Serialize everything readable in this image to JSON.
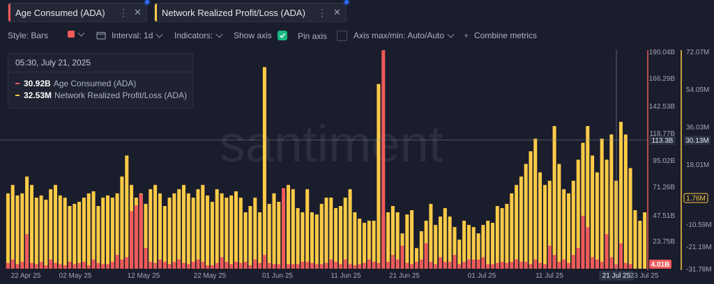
{
  "tabs": [
    {
      "label": "Age Consumed (ADA)",
      "color": "#f05a5a"
    },
    {
      "label": "Network Realized Profit/Loss (ADA)",
      "color": "#ffcb47"
    }
  ],
  "toolbar": {
    "style": "Style: Bars",
    "interval": "Interval: 1d",
    "indicators": "Indicators:",
    "show_axis": "Show axis",
    "pin_axis": "Pin axis",
    "axis_maxmin": "Axis max/min: Auto/Auto",
    "combine": "Combine metrics"
  },
  "tooltip": {
    "date": "05:30, July 21, 2025",
    "rows": [
      {
        "value": "30.92B",
        "label": "Age Consumed (ADA)",
        "color": "#f05a5a"
      },
      {
        "value": "32.53M",
        "label": "Network Realized Profit/Loss (ADA)",
        "color": "#ffcb47"
      }
    ]
  },
  "watermark": "santiment",
  "chart_data": {
    "type": "bar",
    "x_ticks": [
      "22 Apr 25",
      "02 May 25",
      "12 May 25",
      "22 May 25",
      "01 Jun 25",
      "11 Jun 25",
      "21 Jun 25",
      "01 Jul 25",
      "11 Jul 25",
      "21 Jul 25",
      "23 Jul 25"
    ],
    "left_axis": {
      "ticks": [
        "190.04B",
        "166.29B",
        "142.53B",
        "118.77B",
        "95.02B",
        "71.26B",
        "47.51B",
        "23.75B"
      ],
      "current": "113.3B",
      "last": "4.01B",
      "range": [
        0,
        190.04
      ],
      "color": "#f05a5a"
    },
    "right_axis": {
      "ticks": [
        "72.07M",
        "54.05M",
        "36.03M",
        "18.01M",
        "-10.59M",
        "-21.19M",
        "-31.78M"
      ],
      "current": "30.13M",
      "last": "1.76M",
      "range": [
        -31.78,
        72.07
      ],
      "color": "#ffcb47"
    },
    "series": [
      {
        "name": "Age Consumed (ADA)",
        "color": "#f05a5a",
        "values": [
          5,
          8,
          4,
          6,
          30,
          5,
          4,
          6,
          3,
          8,
          5,
          4,
          3,
          6,
          4,
          5,
          6,
          3,
          8,
          5,
          4,
          4,
          6,
          12,
          8,
          10,
          50,
          55,
          65,
          18,
          6,
          5,
          8,
          6,
          4,
          6,
          8,
          5,
          4,
          6,
          8,
          6,
          3,
          3,
          5,
          10,
          6,
          4,
          6,
          5,
          6,
          3,
          8,
          5,
          12,
          5,
          4,
          4,
          70,
          4,
          4,
          4,
          6,
          6,
          5,
          4,
          4,
          5,
          8,
          6,
          4,
          8,
          4,
          3,
          4,
          5,
          8,
          6,
          5,
          190,
          6,
          12,
          8,
          20,
          5,
          4,
          6,
          8,
          22,
          6,
          4,
          10,
          6,
          6,
          12,
          4,
          6,
          8,
          8,
          8,
          10,
          4,
          4,
          5,
          6,
          5,
          6,
          8,
          6,
          6,
          4,
          8,
          5,
          4,
          20,
          12,
          6,
          8,
          5,
          12,
          18,
          46,
          36,
          10,
          8,
          6,
          30,
          10,
          4,
          22,
          5,
          4
        ]
      },
      {
        "name": "Network Realized Profit/Loss (ADA)",
        "color": "#ffcb47",
        "values": [
          4,
          8,
          3,
          4,
          12,
          8,
          2,
          3,
          1,
          6,
          8,
          3,
          2,
          -2,
          -1,
          0,
          2,
          4,
          5,
          -2,
          2,
          3,
          2,
          4,
          12,
          22,
          8,
          2,
          4,
          -1,
          6,
          8,
          4,
          -2,
          2,
          4,
          6,
          8,
          4,
          2,
          6,
          8,
          3,
          0,
          6,
          4,
          2,
          3,
          5,
          2,
          -5,
          -2,
          2,
          -5,
          64,
          -1,
          4,
          0,
          2,
          8,
          6,
          -3,
          -5,
          6,
          -5,
          -6,
          -1,
          2,
          2,
          -3,
          -2,
          2,
          6,
          -5,
          -8,
          -10,
          -9,
          -9,
          56,
          -7,
          -5,
          -2,
          -5,
          -15,
          -6,
          -4,
          -22,
          -14,
          -9,
          -1,
          -11,
          -7,
          -3,
          -7,
          -12,
          -18,
          -9,
          -11,
          -12,
          -15,
          -11,
          -9,
          -10,
          -2,
          -3,
          -1,
          4,
          8,
          12,
          18,
          24,
          30,
          14,
          8,
          10,
          36,
          18,
          6,
          4,
          10,
          20,
          28,
          36,
          22,
          14,
          30,
          20,
          32,
          10,
          38,
          32,
          16,
          -4,
          -9,
          -5
        ]
      }
    ]
  }
}
